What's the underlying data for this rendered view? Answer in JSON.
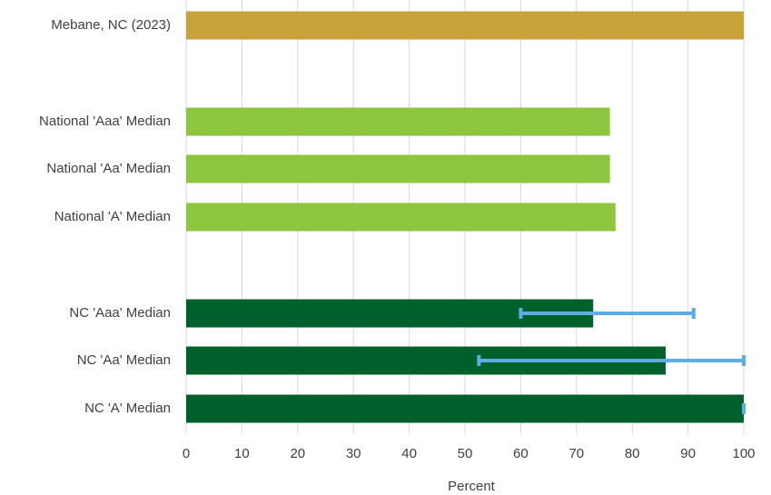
{
  "chart_data": {
    "type": "bar",
    "orientation": "horizontal",
    "xlabel": "Percent",
    "ylabel": "",
    "xlim": [
      0,
      100
    ],
    "xticks": [
      0,
      10,
      20,
      30,
      40,
      50,
      60,
      70,
      80,
      90,
      100
    ],
    "grid": "vertical",
    "bars": [
      {
        "category": "Mebane, NC (2023)",
        "value": 100,
        "color": "#C9A23A"
      },
      {
        "category": "National 'Aaa' Median",
        "value": 76,
        "color": "#8DC63F"
      },
      {
        "category": "National 'Aa' Median",
        "value": 76,
        "color": "#8DC63F"
      },
      {
        "category": "National 'A' Median",
        "value": 77,
        "color": "#8DC63F"
      },
      {
        "category": "NC 'Aaa' Median",
        "value": 73,
        "color": "#00602B",
        "error_low": 60,
        "error_high": 91
      },
      {
        "category": "NC 'Aa' Median",
        "value": 86,
        "color": "#00602B",
        "error_low": 52.5,
        "error_high": 100
      },
      {
        "category": "NC 'A' Median",
        "value": 100,
        "color": "#00602B",
        "error_low": 100,
        "error_high": 100
      }
    ],
    "error_bar_color": "#5DADE2"
  }
}
